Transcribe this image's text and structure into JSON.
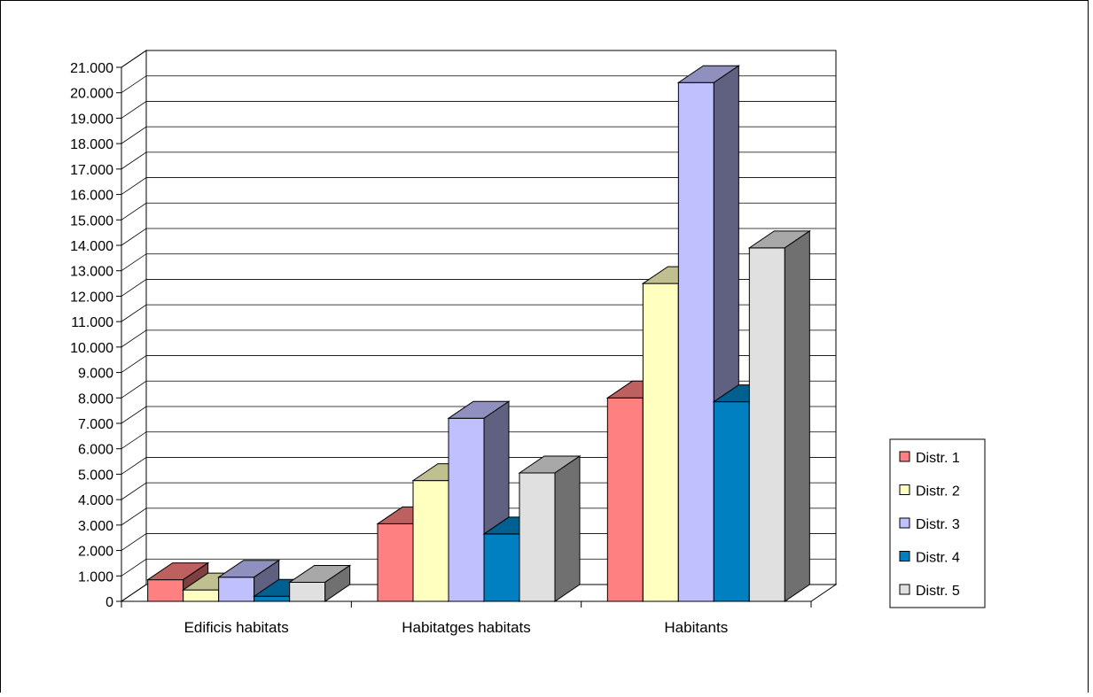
{
  "chart_data": {
    "type": "bar",
    "title": "",
    "xlabel": "",
    "ylabel": "",
    "categories": [
      "Edificis habitats",
      "Habitatges habitats",
      "Habitants"
    ],
    "series": [
      {
        "name": "Distr. 1",
        "values": [
          850,
          3050,
          8000
        ],
        "color": "#ff8080"
      },
      {
        "name": "Distr. 2",
        "values": [
          450,
          4750,
          12500
        ],
        "color": "#ffffc0"
      },
      {
        "name": "Distr. 3",
        "values": [
          950,
          7200,
          20400
        ],
        "color": "#c0c0ff"
      },
      {
        "name": "Distr. 4",
        "values": [
          200,
          2650,
          7850
        ],
        "color": "#0080c0"
      },
      {
        "name": "Distr. 5",
        "values": [
          750,
          5050,
          13900
        ],
        "color": "#e0e0e0"
      }
    ],
    "ylim": [
      0,
      21000
    ],
    "yticks": [
      0,
      1000,
      2000,
      3000,
      4000,
      5000,
      6000,
      7000,
      8000,
      9000,
      10000,
      11000,
      12000,
      13000,
      14000,
      15000,
      16000,
      17000,
      18000,
      19000,
      20000,
      21000
    ],
    "ytick_labels": [
      "0",
      "1.000",
      "2.000",
      "3.000",
      "4.000",
      "5.000",
      "6.000",
      "7.000",
      "8.000",
      "9.000",
      "10.000",
      "11.000",
      "12.000",
      "13.000",
      "14.000",
      "15.000",
      "16.000",
      "17.000",
      "18.000",
      "19.000",
      "20.000",
      "21.000"
    ],
    "grid": true,
    "style": "3d-clustered-column",
    "legend_position": "right"
  }
}
